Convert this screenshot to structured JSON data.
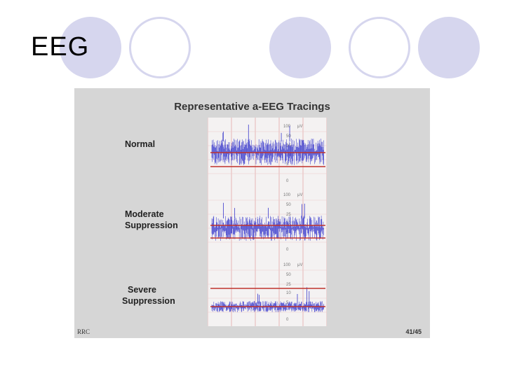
{
  "slide": {
    "title": "EEG"
  },
  "figure": {
    "title": "Representative a-EEG Tracings",
    "footer_left": "RRC",
    "footer_right": "41/45",
    "panels": [
      {
        "label_lines": [
          "Normal"
        ],
        "scale_labels": [
          "100",
          "μV",
          "50",
          "25",
          "10",
          "5",
          "0"
        ],
        "level": "normal"
      },
      {
        "label_lines": [
          "Moderate",
          "Suppression"
        ],
        "scale_labels": [
          "100",
          "μV",
          "50",
          "25",
          "10",
          "5",
          "0"
        ],
        "level": "moderate"
      },
      {
        "label_lines": [
          "Severe",
          "Suppression"
        ],
        "scale_labels": [
          "100",
          "μV",
          "50",
          "25",
          "10",
          "5",
          "0"
        ],
        "level": "severe"
      }
    ]
  },
  "colors": {
    "decor": "#d6d6ee",
    "trace": "#3a3acc",
    "reference_line": "#c0322c"
  }
}
